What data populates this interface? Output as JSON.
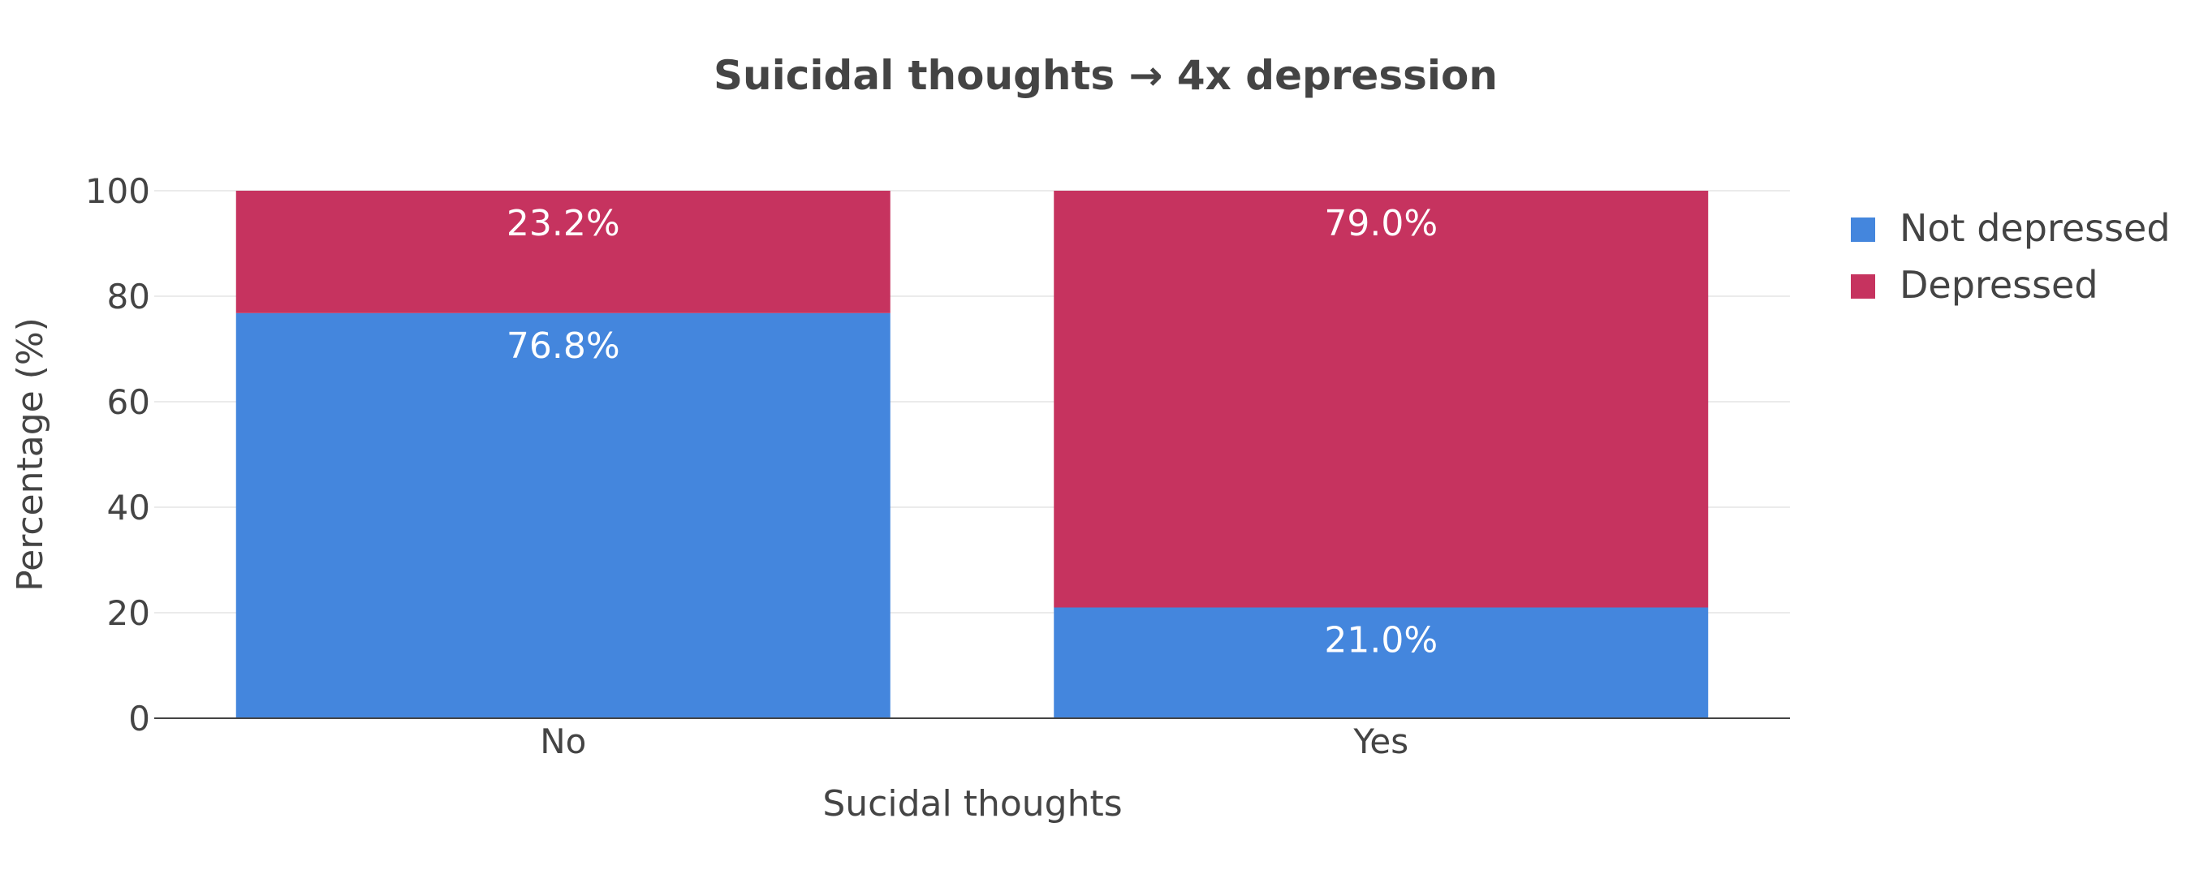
{
  "chart_data": {
    "type": "bar",
    "stacked": true,
    "title": "Suicidal thoughts → 4x depression",
    "xlabel": "Sucidal thoughts",
    "ylabel": "Percentage (%)",
    "categories": [
      "No",
      "Yes"
    ],
    "ylim": [
      0,
      100
    ],
    "yticks": [
      0,
      20,
      40,
      60,
      80,
      100
    ],
    "grid": true,
    "legend_position": "top-right",
    "series": [
      {
        "name": "Not depressed",
        "color": "#4486dd",
        "values": [
          76.8,
          21.0
        ],
        "labels": [
          "76.8%",
          "21.0%"
        ]
      },
      {
        "name": "Depressed",
        "color": "#c6335f",
        "values": [
          23.2,
          79.0
        ],
        "labels": [
          "23.2%",
          "79.0%"
        ]
      }
    ]
  }
}
